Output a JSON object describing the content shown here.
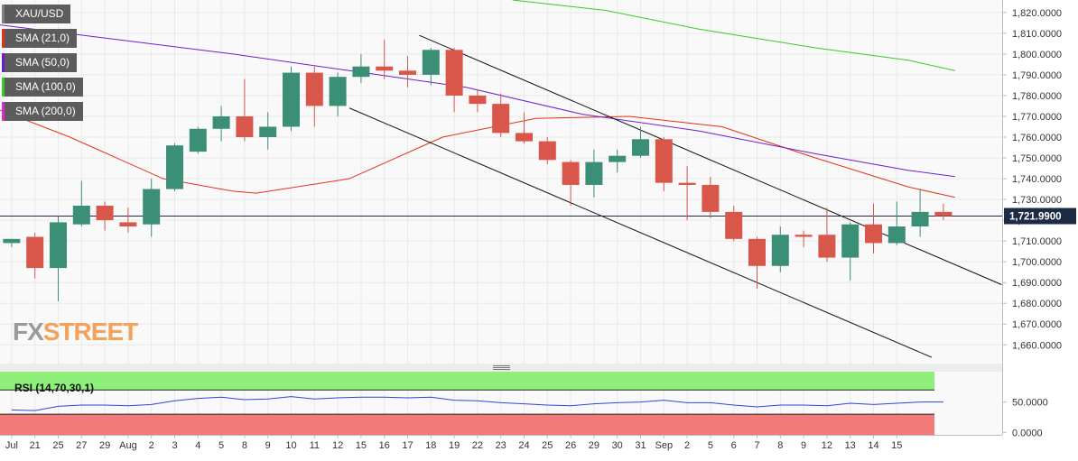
{
  "chart_data": {
    "type": "candlestick",
    "symbol": "XAU/USD",
    "price_axis": {
      "ylim": [
        1651,
        1826
      ],
      "ticks": [
        "1,660.0000",
        "1,670.0000",
        "1,680.0000",
        "1,690.0000",
        "1,700.0000",
        "1,710.0000",
        "1,720.0000",
        "1,730.0000",
        "1,740.0000",
        "1,750.0000",
        "1,760.0000",
        "1,770.0000",
        "1,780.0000",
        "1,790.0000",
        "1,800.0000",
        "1,810.0000",
        "1,820.0000"
      ],
      "tick_values": [
        1660,
        1670,
        1680,
        1690,
        1700,
        1710,
        1720,
        1730,
        1740,
        1750,
        1760,
        1770,
        1780,
        1790,
        1800,
        1810,
        1820
      ],
      "current_price_label": "1,721.9900",
      "current_price": 1721.99
    },
    "x_labels": [
      "Jul",
      "21",
      "25",
      "27",
      "29",
      "Aug",
      "2",
      "3",
      "4",
      "5",
      "8",
      "9",
      "10",
      "11",
      "12",
      "15",
      "16",
      "17",
      "18",
      "19",
      "22",
      "23",
      "24",
      "25",
      "26",
      "29",
      "30",
      "31",
      "Sep",
      "2",
      "5",
      "6",
      "7",
      "8",
      "9",
      "12",
      "13",
      "14",
      "15"
    ],
    "candles": [
      {
        "o": 1709,
        "h": 1711,
        "l": 1707,
        "c": 1711
      },
      {
        "o": 1712,
        "h": 1714,
        "l": 1692,
        "c": 1697
      },
      {
        "o": 1697,
        "h": 1722,
        "l": 1681,
        "c": 1719
      },
      {
        "o": 1718,
        "h": 1739,
        "l": 1717,
        "c": 1727
      },
      {
        "o": 1727,
        "h": 1729,
        "l": 1715,
        "c": 1720
      },
      {
        "o": 1719,
        "h": 1726,
        "l": 1714,
        "c": 1717
      },
      {
        "o": 1718,
        "h": 1740,
        "l": 1712,
        "c": 1735
      },
      {
        "o": 1735,
        "h": 1757,
        "l": 1734,
        "c": 1756
      },
      {
        "o": 1753,
        "h": 1765,
        "l": 1752,
        "c": 1764
      },
      {
        "o": 1764,
        "h": 1775,
        "l": 1758,
        "c": 1770
      },
      {
        "o": 1770,
        "h": 1788,
        "l": 1758,
        "c": 1760
      },
      {
        "o": 1760,
        "h": 1772,
        "l": 1754,
        "c": 1765
      },
      {
        "o": 1765,
        "h": 1794,
        "l": 1763,
        "c": 1791
      },
      {
        "o": 1791,
        "h": 1794,
        "l": 1765,
        "c": 1775
      },
      {
        "o": 1775,
        "h": 1791,
        "l": 1770,
        "c": 1789
      },
      {
        "o": 1789,
        "h": 1800,
        "l": 1786,
        "c": 1794
      },
      {
        "o": 1794,
        "h": 1807,
        "l": 1788,
        "c": 1792
      },
      {
        "o": 1792,
        "h": 1799,
        "l": 1784,
        "c": 1790
      },
      {
        "o": 1790,
        "h": 1803,
        "l": 1785,
        "c": 1802
      },
      {
        "o": 1802,
        "h": 1803,
        "l": 1772,
        "c": 1780
      },
      {
        "o": 1780,
        "h": 1783,
        "l": 1772,
        "c": 1776
      },
      {
        "o": 1776,
        "h": 1781,
        "l": 1760,
        "c": 1762
      },
      {
        "o": 1762,
        "h": 1772,
        "l": 1757,
        "c": 1758
      },
      {
        "o": 1758,
        "h": 1760,
        "l": 1747,
        "c": 1749
      },
      {
        "o": 1748,
        "h": 1749,
        "l": 1727,
        "c": 1737
      },
      {
        "o": 1737,
        "h": 1754,
        "l": 1731,
        "c": 1748
      },
      {
        "o": 1748,
        "h": 1754,
        "l": 1743,
        "c": 1751
      },
      {
        "o": 1751,
        "h": 1765,
        "l": 1750,
        "c": 1759
      },
      {
        "o": 1759,
        "h": 1760,
        "l": 1734,
        "c": 1738
      },
      {
        "o": 1738,
        "h": 1746,
        "l": 1720,
        "c": 1737
      },
      {
        "o": 1737,
        "h": 1741,
        "l": 1721,
        "c": 1724
      },
      {
        "o": 1724,
        "h": 1727,
        "l": 1710,
        "c": 1711
      },
      {
        "o": 1711,
        "h": 1712,
        "l": 1687,
        "c": 1698
      },
      {
        "o": 1698,
        "h": 1717,
        "l": 1695,
        "c": 1713
      },
      {
        "o": 1713,
        "h": 1715,
        "l": 1707,
        "c": 1712
      },
      {
        "o": 1713,
        "h": 1726,
        "l": 1700,
        "c": 1702
      },
      {
        "o": 1702,
        "h": 1719,
        "l": 1691,
        "c": 1718
      },
      {
        "o": 1718,
        "h": 1728,
        "l": 1704,
        "c": 1709
      },
      {
        "o": 1709,
        "h": 1729,
        "l": 1708,
        "c": 1717
      },
      {
        "o": 1717,
        "h": 1735,
        "l": 1712,
        "c": 1724
      },
      {
        "o": 1724,
        "h": 1728,
        "l": 1720,
        "c": 1722
      }
    ],
    "series": [
      {
        "name": "SMA (21,0)",
        "color": "#e6301b",
        "x": [
          -0.5,
          2.5,
          6.5,
          9.5,
          10.5,
          14.5,
          18.5,
          22.5,
          26.5,
          30.5,
          34.5,
          38.5,
          40.5
        ],
        "y": [
          1773,
          1760,
          1740,
          1734,
          1733,
          1740,
          1760,
          1769,
          1770,
          1765,
          1750,
          1736,
          1731
        ]
      },
      {
        "name": "SMA (50,0)",
        "color": "#6a1fd1",
        "x": [
          -0.5,
          4.5,
          9.5,
          14.5,
          19.5,
          24.5,
          29.5,
          34.5,
          38.5,
          40.5
        ],
        "y": [
          1814,
          1807,
          1800,
          1792,
          1784,
          1771,
          1763,
          1752,
          1744,
          1741
        ]
      },
      {
        "name": "SMA (100,0)",
        "color": "#3cc92a",
        "x": [
          21.5,
          25.5,
          29.5,
          34.5,
          38.5,
          40.5
        ],
        "y": [
          1826,
          1821,
          1812,
          1803,
          1797,
          1792
        ]
      },
      {
        "name": "SMA (200,0)",
        "color": "#d82bd8",
        "x": [],
        "y": []
      }
    ],
    "channel_lines": [
      {
        "x": [
          17.5,
          42.5
        ],
        "y": [
          1809,
          1689
        ]
      },
      {
        "x": [
          14.5,
          39.5
        ],
        "y": [
          1774,
          1654
        ]
      }
    ],
    "rsi": {
      "label": "RSI (14,70,30,1)",
      "ticks": [
        "50.0000",
        "0.0000"
      ],
      "tick_values": [
        50,
        0
      ],
      "ylim": [
        -4,
        100
      ],
      "overbought": 70,
      "oversold": 30,
      "values": [
        37,
        36,
        43,
        45,
        45,
        44,
        46,
        52,
        56,
        58,
        54,
        55,
        59,
        55,
        57,
        58,
        58,
        57,
        58,
        53,
        52,
        49,
        47,
        45,
        44,
        47,
        49,
        50,
        53,
        49,
        49,
        45,
        42,
        45,
        45,
        44,
        48,
        46,
        48,
        50,
        50
      ]
    }
  },
  "legend": [
    {
      "label": "XAU/USD",
      "color": "#808080"
    },
    {
      "label": "SMA (21,0)",
      "color": "#e6301b"
    },
    {
      "label": "SMA (50,0)",
      "color": "#6a1fd1"
    },
    {
      "label": "SMA (100,0)",
      "color": "#3cc92a"
    },
    {
      "label": "SMA (200,0)",
      "color": "#d82bd8"
    }
  ],
  "brand": {
    "part1": "FX",
    "part2": "STREET"
  },
  "colors": {
    "up": "#3c8f77",
    "down": "#d9574a",
    "grid": "#e9e9e9",
    "rsi_over": "#8ef07a",
    "rsi_under": "#f27a79",
    "rsi_line": "#3344dd"
  }
}
